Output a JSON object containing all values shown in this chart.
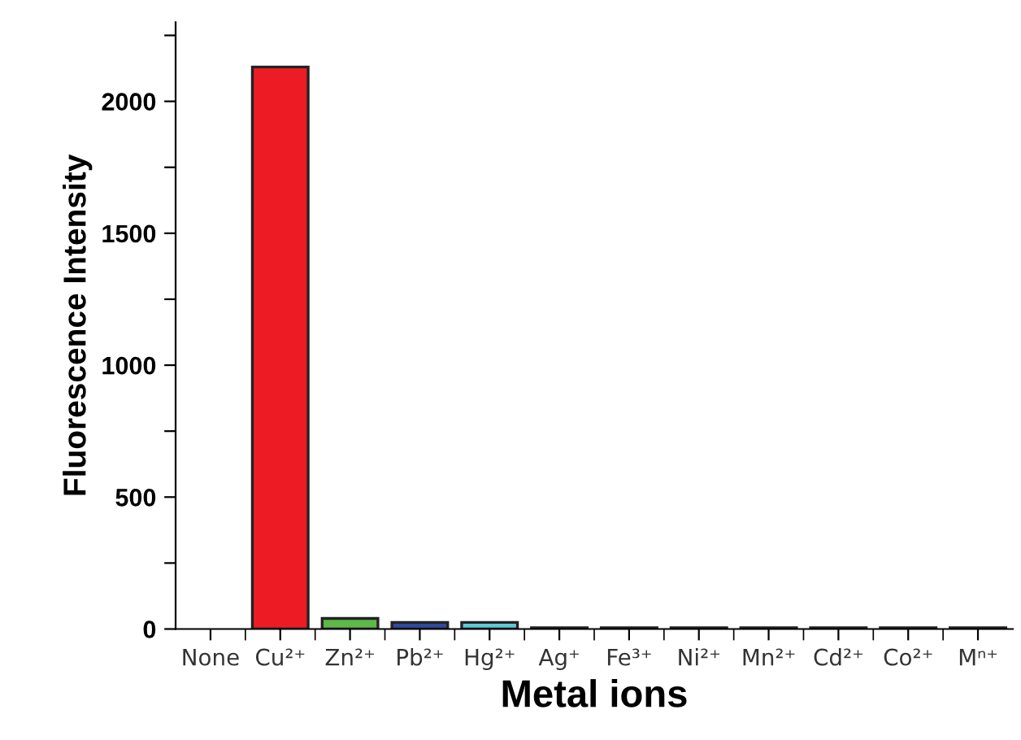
{
  "chart_data": {
    "type": "bar",
    "xlabel": "Metal ions",
    "ylabel": "Fluorescence Intensity",
    "categories": [
      "None",
      "Cu²⁺",
      "Zn²⁺",
      "Pb²⁺",
      "Hg²⁺",
      "Ag⁺",
      "Fe³⁺",
      "Ni²⁺",
      "Mn²⁺",
      "Cd²⁺",
      "Co²⁺",
      "Mⁿ⁺"
    ],
    "values": [
      null,
      2130,
      40,
      25,
      25,
      5,
      5,
      5,
      5,
      5,
      5,
      5
    ],
    "colors": [
      null,
      "#ed1c24",
      "#5cb848",
      "#2e4a9e",
      "#5cc8d8",
      "#444444",
      "#444444",
      "#444444",
      "#444444",
      "#444444",
      "#444444",
      "#444444"
    ],
    "ylim": [
      0,
      2300
    ],
    "yticks": [
      0,
      {
        "value": 250,
        "label": null
      },
      500,
      {
        "value": 750,
        "label": null
      },
      1000,
      {
        "value": 1250,
        "label": null
      },
      1500,
      {
        "value": 1750,
        "label": null
      },
      2000,
      {
        "value": 2250,
        "label": null
      }
    ],
    "grid": false
  }
}
